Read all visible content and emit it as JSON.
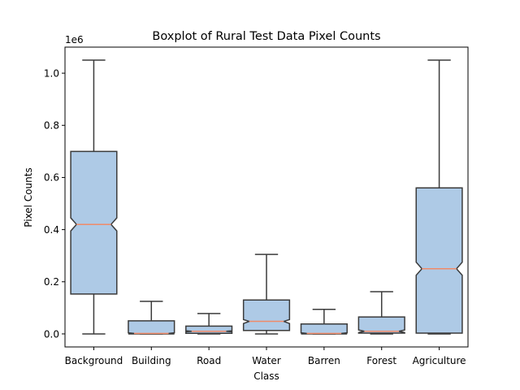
{
  "chart_data": {
    "type": "box",
    "title": "Boxplot of Rural Test Data Pixel Counts",
    "xlabel": "Class",
    "ylabel": "Pixel Counts",
    "y_offset_label": "1e6",
    "y_multiplier": 1000000,
    "ylim": [
      -0.05,
      1.1
    ],
    "yticks": [
      0.0,
      0.2,
      0.4,
      0.6,
      0.8,
      1.0
    ],
    "ytick_labels": [
      "0.0",
      "0.2",
      "0.4",
      "0.6",
      "0.8",
      "1.0"
    ],
    "notched": true,
    "grid": false,
    "colors": {
      "box_fill": "#aecae6",
      "box_edge": "#3b3b3b",
      "median": "#f08a68",
      "whisker": "#3b3b3b"
    },
    "categories": [
      "Background",
      "Building",
      "Road",
      "Water",
      "Barren",
      "Forest",
      "Agriculture"
    ],
    "boxes": [
      {
        "label": "Background",
        "whisker_low": 0.0,
        "q1": 0.153,
        "median": 0.42,
        "q3": 0.7,
        "whisker_high": 1.05,
        "notch_low": 0.395,
        "notch_high": 0.445
      },
      {
        "label": "Building",
        "whisker_low": 0.0,
        "q1": 0.0,
        "median": 0.002,
        "q3": 0.05,
        "whisker_high": 0.125,
        "notch_low": 0.0,
        "notch_high": 0.004
      },
      {
        "label": "Road",
        "whisker_low": 0.0,
        "q1": 0.002,
        "median": 0.01,
        "q3": 0.03,
        "whisker_high": 0.078,
        "notch_low": 0.008,
        "notch_high": 0.012
      },
      {
        "label": "Water",
        "whisker_low": 0.0,
        "q1": 0.013,
        "median": 0.048,
        "q3": 0.13,
        "whisker_high": 0.305,
        "notch_low": 0.04,
        "notch_high": 0.055
      },
      {
        "label": "Barren",
        "whisker_low": 0.0,
        "q1": 0.0,
        "median": 0.002,
        "q3": 0.038,
        "whisker_high": 0.094,
        "notch_low": 0.0,
        "notch_high": 0.004
      },
      {
        "label": "Forest",
        "whisker_low": 0.0,
        "q1": 0.003,
        "median": 0.01,
        "q3": 0.065,
        "whisker_high": 0.162,
        "notch_low": 0.005,
        "notch_high": 0.015
      },
      {
        "label": "Agriculture",
        "whisker_low": 0.0,
        "q1": 0.003,
        "median": 0.25,
        "q3": 0.56,
        "whisker_high": 1.05,
        "notch_low": 0.225,
        "notch_high": 0.275
      }
    ]
  }
}
